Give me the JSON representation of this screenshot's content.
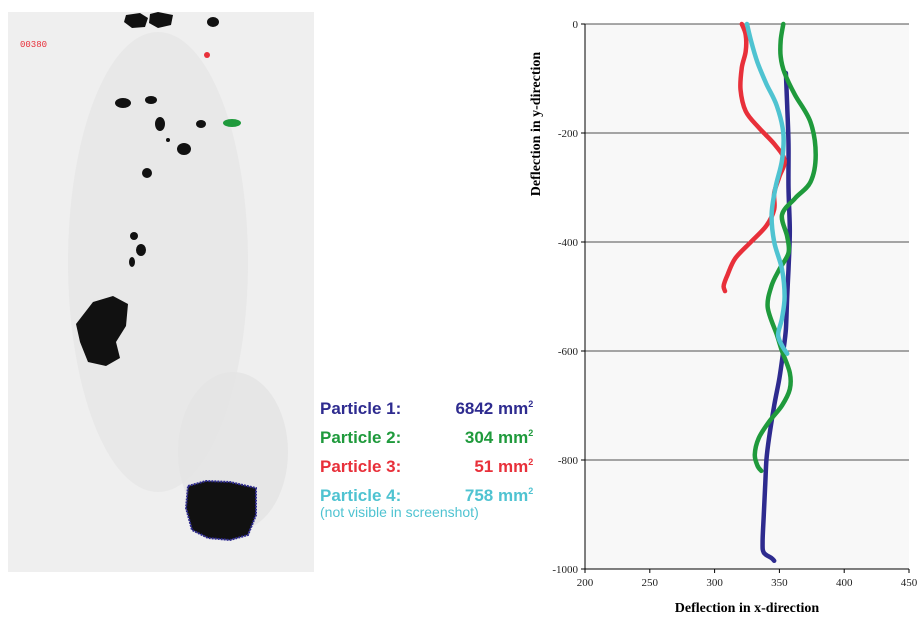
{
  "photo": {
    "frame_label": "00380",
    "background": "#efefef",
    "frame_label_color": "#e8303a"
  },
  "legend": {
    "items": [
      {
        "label": "Particle 1:",
        "area": "6842",
        "unit": "mm",
        "exp": "2",
        "color": "#2e2b8f"
      },
      {
        "label": "Particle 2:",
        "area": "304",
        "unit": "mm",
        "exp": "2",
        "color": "#1f9a3c"
      },
      {
        "label": "Particle 3:",
        "area": "51",
        "unit": "mm",
        "exp": "2",
        "color": "#e8303a"
      },
      {
        "label": "Particle 4:",
        "area": "758",
        "unit": "mm",
        "exp": "2",
        "color": "#4fc3d1"
      }
    ],
    "note": "(not visible in screenshot)"
  },
  "chart_data": {
    "type": "line",
    "xlabel": "Deflection in x-direction",
    "ylabel": "Deflection in y-direction",
    "xlim": [
      200,
      450
    ],
    "ylim": [
      -1000,
      0
    ],
    "xticks": [
      200,
      250,
      300,
      350,
      400,
      450
    ],
    "yticks": [
      0,
      -200,
      -400,
      -600,
      -800,
      -1000
    ],
    "grid": "horizontal",
    "background": "#f8f8f8",
    "series": [
      {
        "name": "Particle 1",
        "color": "#2e2b8f",
        "x": [
          355,
          356,
          357,
          357,
          358,
          357,
          356,
          355,
          353,
          350,
          346,
          342,
          340,
          339,
          338,
          337,
          338,
          344,
          346
        ],
        "y": [
          -90,
          -150,
          -220,
          -300,
          -380,
          -450,
          -500,
          -560,
          -600,
          -650,
          -700,
          -760,
          -800,
          -850,
          -900,
          -950,
          -970,
          -980,
          -985
        ]
      },
      {
        "name": "Particle 2",
        "color": "#1f9a3c",
        "x": [
          353,
          351,
          351,
          354,
          362,
          374,
          378,
          374,
          362,
          352,
          356,
          357,
          350,
          344,
          341,
          348,
          352,
          358,
          358,
          352,
          342,
          334,
          331,
          333,
          336
        ],
        "y": [
          0,
          -30,
          -60,
          -90,
          -130,
          -180,
          -240,
          -290,
          -320,
          -350,
          -390,
          -420,
          -450,
          -480,
          -520,
          -570,
          -600,
          -640,
          -670,
          -700,
          -730,
          -760,
          -790,
          -810,
          -820
        ]
      },
      {
        "name": "Particle 3",
        "color": "#e8303a",
        "x": [
          321,
          324,
          324,
          321,
          320,
          324,
          334,
          346,
          354,
          350,
          346,
          346,
          340,
          328,
          316,
          310,
          307,
          308
        ],
        "y": [
          0,
          -20,
          -50,
          -80,
          -120,
          -160,
          -190,
          -220,
          -250,
          -280,
          -310,
          -340,
          -370,
          -400,
          -430,
          -460,
          -480,
          -490
        ]
      },
      {
        "name": "Particle 4",
        "color": "#4fc3d1",
        "x": [
          325,
          328,
          333,
          340,
          348,
          353,
          352,
          347,
          344,
          346,
          352,
          354,
          352,
          349,
          352,
          356
        ],
        "y": [
          0,
          -30,
          -70,
          -110,
          -150,
          -200,
          -250,
          -300,
          -350,
          -400,
          -450,
          -500,
          -540,
          -570,
          -590,
          -605
        ]
      }
    ]
  }
}
